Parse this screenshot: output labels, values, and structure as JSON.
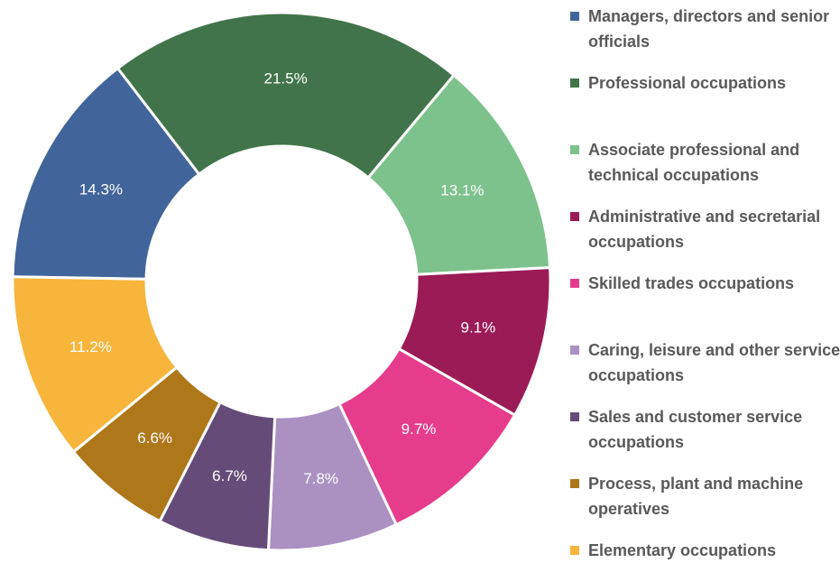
{
  "chart_data": {
    "type": "donut",
    "categories": [
      "Managers, directors and senior officials",
      "Professional occupations",
      "Associate professional and technical occupations",
      "Administrative and secretarial occupations",
      "Skilled trades occupations",
      "Caring, leisure and other service occupations",
      "Sales and customer service occupations",
      "Process, plant and machine operatives",
      "Elementary occupations"
    ],
    "values": [
      14.3,
      21.5,
      13.1,
      9.1,
      9.7,
      7.8,
      6.7,
      6.6,
      11.2
    ],
    "value_labels": [
      "14.3%",
      "21.5%",
      "13.1%",
      "9.1%",
      "9.7%",
      "7.8%",
      "6.7%",
      "6.6%",
      "11.2%"
    ],
    "colors": [
      "#41659a",
      "#41744a",
      "#7dc28c",
      "#9b1b57",
      "#e63c8c",
      "#ab90c2",
      "#654c78",
      "#ae771a",
      "#f7b53b"
    ]
  }
}
